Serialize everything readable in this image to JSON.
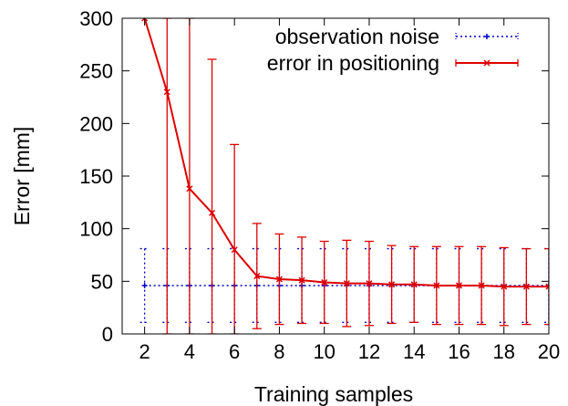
{
  "chart_data": {
    "type": "line",
    "title": "",
    "xlabel": "Training samples",
    "ylabel": "Error [mm]",
    "xlim": [
      1,
      20
    ],
    "ylim": [
      0,
      300
    ],
    "x_ticks": [
      2,
      4,
      6,
      8,
      10,
      12,
      14,
      16,
      18,
      20
    ],
    "y_ticks": [
      0,
      50,
      100,
      150,
      200,
      250,
      300
    ],
    "grid": false,
    "legend_position": "top-right",
    "series": [
      {
        "name": "observation noise",
        "color": "#0000cc",
        "line_style": "dotted",
        "marker": "plus",
        "x": [
          2,
          3,
          4,
          5,
          6,
          7,
          8,
          9,
          10,
          11,
          12,
          13,
          14,
          15,
          16,
          17,
          18,
          19,
          20
        ],
        "y": [
          46,
          46,
          46,
          46,
          46,
          46,
          46,
          46,
          46,
          46,
          46,
          46,
          46,
          46,
          46,
          46,
          46,
          46,
          46
        ],
        "error": [
          35,
          35,
          35,
          35,
          35,
          35,
          35,
          35,
          35,
          35,
          35,
          35,
          35,
          35,
          35,
          35,
          35,
          35,
          35
        ]
      },
      {
        "name": "error in positioning",
        "color": "#dd0000",
        "line_style": "solid",
        "marker": "x",
        "x": [
          2,
          3,
          4,
          5,
          6,
          7,
          8,
          9,
          10,
          11,
          12,
          13,
          14,
          15,
          16,
          17,
          18,
          19,
          20
        ],
        "y": [
          300,
          230,
          138,
          115,
          80,
          55,
          52,
          51,
          49,
          48,
          48,
          47,
          47,
          46,
          46,
          46,
          45,
          45,
          45
        ],
        "error": [
          null,
          300,
          300,
          146,
          100,
          50,
          43,
          41,
          39,
          41,
          40,
          37,
          36,
          37,
          37,
          37,
          37,
          36,
          36
        ]
      }
    ]
  }
}
